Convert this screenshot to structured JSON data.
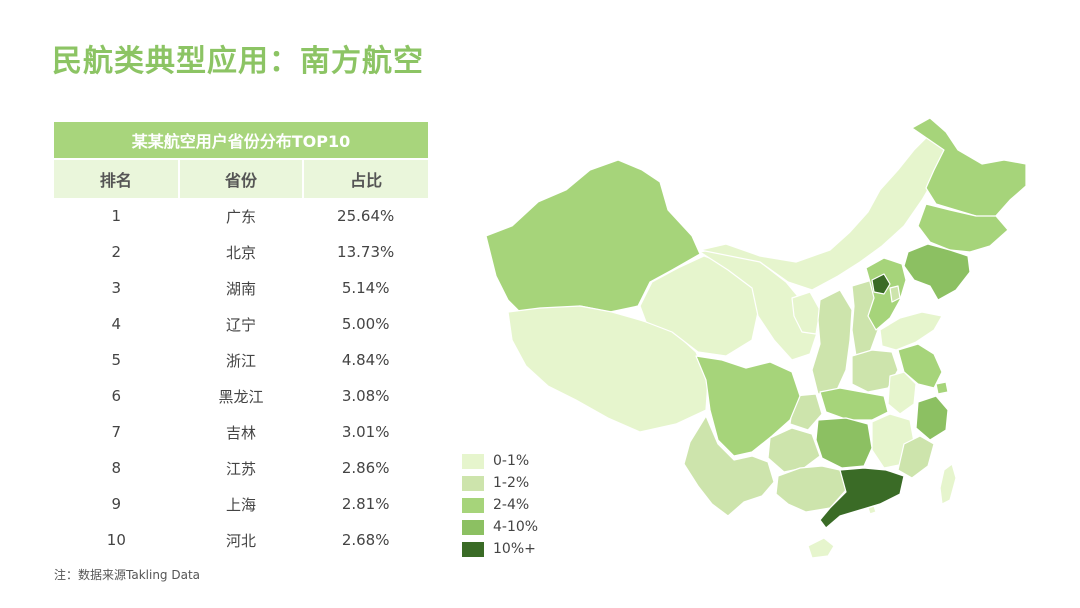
{
  "title": "民航类典型应用：南方航空",
  "table": {
    "caption": "某某航空用户省份分布TOP10",
    "headers": [
      "排名",
      "省份",
      "占比"
    ],
    "rows": [
      {
        "rank": "1",
        "province": "广东",
        "share": "25.64%"
      },
      {
        "rank": "2",
        "province": "北京",
        "share": "13.73%"
      },
      {
        "rank": "3",
        "province": "湖南",
        "share": "5.14%"
      },
      {
        "rank": "4",
        "province": "辽宁",
        "share": "5.00%"
      },
      {
        "rank": "5",
        "province": "浙江",
        "share": "4.84%"
      },
      {
        "rank": "6",
        "province": "黑龙江",
        "share": "3.08%"
      },
      {
        "rank": "7",
        "province": "吉林",
        "share": "3.01%"
      },
      {
        "rank": "8",
        "province": "江苏",
        "share": "2.86%"
      },
      {
        "rank": "9",
        "province": "上海",
        "share": "2.81%"
      },
      {
        "rank": "10",
        "province": "河北",
        "share": "2.68%"
      }
    ]
  },
  "legend": [
    {
      "label": "0-1%",
      "color": "#e6f5cd"
    },
    {
      "label": "1-2%",
      "color": "#cde4ac"
    },
    {
      "label": "2-4%",
      "color": "#a6d47a"
    },
    {
      "label": "4-10%",
      "color": "#8cc062"
    },
    {
      "label": "10%+",
      "color": "#3a6b26"
    }
  ],
  "footnote": "注：数据来源Takling Data"
}
